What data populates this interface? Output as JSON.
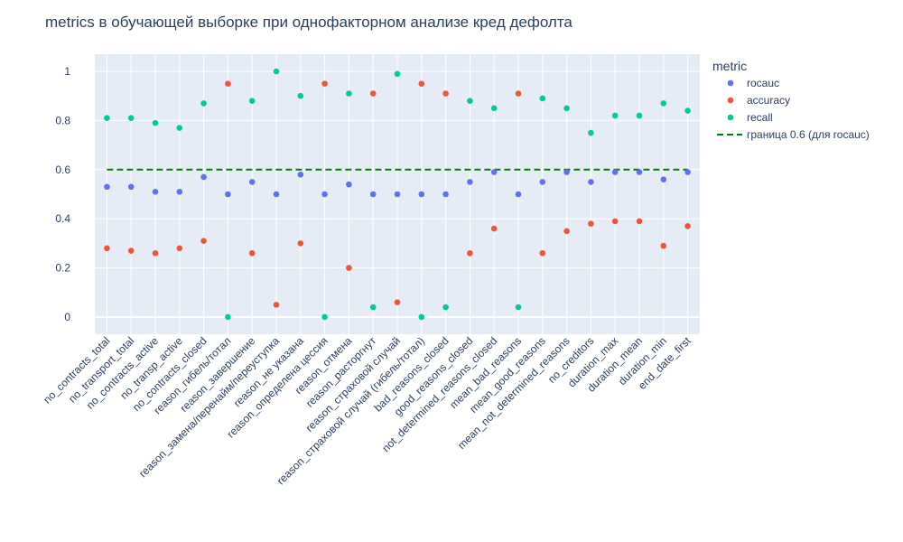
{
  "chart_data": {
    "type": "scatter",
    "title": "metrics в обучающей выборке при однофакторном анализе кред дефолта",
    "xlabel": "",
    "ylabel": "",
    "ylim": [
      -0.07,
      1.07
    ],
    "yticks": [
      0,
      0.2,
      0.4,
      0.6,
      0.8,
      1
    ],
    "ytick_labels": [
      "0",
      "0.2",
      "0.4",
      "0.6",
      "0.8",
      "1"
    ],
    "grid": true,
    "legend_title": "metric",
    "legend_position": "right",
    "categories": [
      "no_contracts_total",
      "no_transport_total",
      "no_contracts_active",
      "no_transp_active",
      "no_contracts_closed",
      "reason_гибель/тотал",
      "reason_завершение",
      "reason_замена/перенайм/переуступка",
      "reason_не указана",
      "reason_определена цессия",
      "reason_отмена",
      "reason_расторгнут",
      "reason_страховой случай",
      "reason_страховой случай (гибель/тотал)",
      "bad_reasons_closed",
      "good_reasons_closed",
      "not_determined_reasons_closed",
      "mean_bad_reasons",
      "mean_good_reasons",
      "mean_not_determined_reasons",
      "no_creditors",
      "duration_max",
      "duration_mean",
      "duration_min",
      "end_date_first"
    ],
    "series": [
      {
        "name": "rocauc",
        "color": "#636efa",
        "values": [
          0.53,
          0.53,
          0.51,
          0.51,
          0.57,
          0.5,
          0.55,
          0.5,
          0.58,
          0.5,
          0.54,
          0.5,
          0.5,
          0.5,
          0.5,
          0.55,
          0.59,
          0.5,
          0.55,
          0.59,
          0.55,
          0.59,
          0.59,
          0.56,
          0.59
        ]
      },
      {
        "name": "accuracy",
        "color": "#ef553b",
        "values": [
          0.28,
          0.27,
          0.26,
          0.28,
          0.31,
          0.95,
          0.26,
          0.05,
          0.3,
          0.95,
          0.2,
          0.91,
          0.06,
          0.95,
          0.91,
          0.26,
          0.36,
          0.91,
          0.26,
          0.35,
          0.38,
          0.39,
          0.39,
          0.29,
          0.37
        ]
      },
      {
        "name": "recall",
        "color": "#00cc96",
        "values": [
          0.81,
          0.81,
          0.79,
          0.77,
          0.87,
          0.0,
          0.88,
          1.0,
          0.9,
          0.0,
          0.91,
          0.04,
          0.99,
          0.0,
          0.04,
          0.88,
          0.85,
          0.04,
          0.89,
          0.85,
          0.75,
          0.82,
          0.82,
          0.87,
          0.84
        ]
      }
    ],
    "reference_line": {
      "name": "граница 0.6 (для rocauc)",
      "value": 0.6,
      "color": "#008000",
      "style": "dashed"
    },
    "colors": {
      "plot_background": "#e5ecf6",
      "grid": "#ffffff",
      "text": "#2a3f5f"
    }
  }
}
